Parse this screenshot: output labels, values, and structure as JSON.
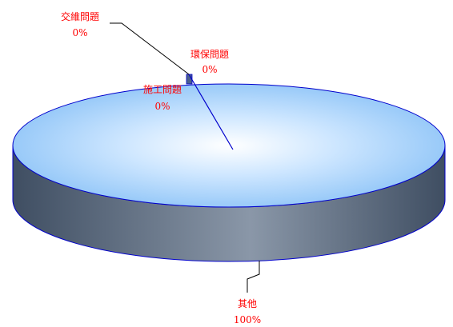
{
  "chart_data": {
    "type": "pie",
    "variant": "3d",
    "title": "",
    "legend": "none",
    "categories": [
      "交維問題",
      "環保問題",
      "施工問題",
      "其他"
    ],
    "values": [
      0,
      0,
      0,
      100
    ],
    "labels": [
      {
        "name": "交維問題",
        "percent": "0%"
      },
      {
        "name": "環保問題",
        "percent": "0%"
      },
      {
        "name": "施工問題",
        "percent": "0%"
      },
      {
        "name": "其他",
        "percent": "100%"
      }
    ],
    "colors": {
      "top_light": "#ffffff",
      "top_mid": "#cde6ff",
      "top_dark": "#8ec4f7",
      "side_light": "#8a97a8",
      "side_dark": "#3f4e62",
      "outline": "#0000cc",
      "label_text": "#ff0000",
      "leader_line": "#000000"
    }
  }
}
